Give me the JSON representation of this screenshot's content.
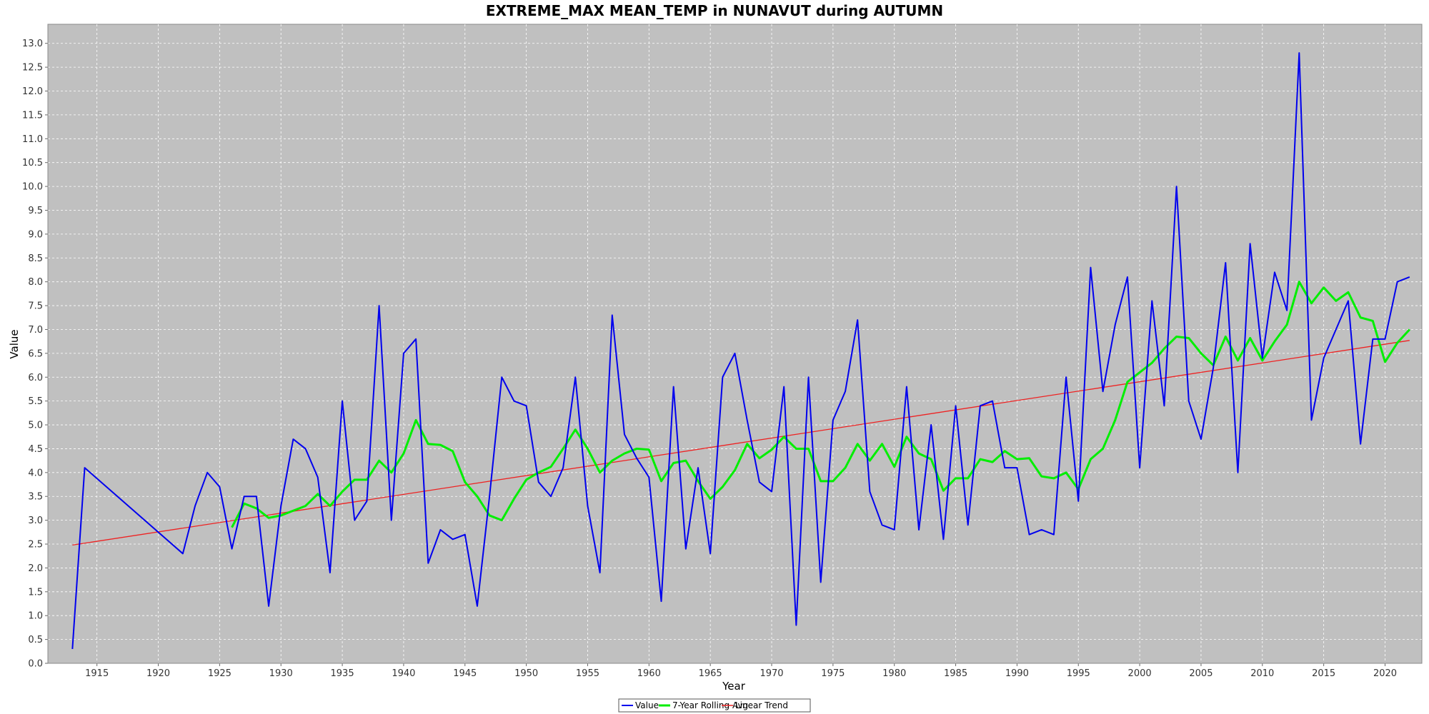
{
  "chart_data": {
    "type": "line",
    "title": "EXTREME_MAX MEAN_TEMP in NUNAVUT during AUTUMN",
    "xlabel": "Year",
    "ylabel": "Value",
    "xlim": [
      1911,
      2023
    ],
    "ylim": [
      0,
      13.4
    ],
    "x_ticks": [
      1915,
      1920,
      1925,
      1930,
      1935,
      1940,
      1945,
      1950,
      1955,
      1960,
      1965,
      1970,
      1975,
      1980,
      1985,
      1990,
      1995,
      2000,
      2005,
      2010,
      2015,
      2020
    ],
    "y_ticks": [
      0.0,
      0.5,
      1.0,
      1.5,
      2.0,
      2.5,
      3.0,
      3.5,
      4.0,
      4.5,
      5.0,
      5.5,
      6.0,
      6.5,
      7.0,
      7.5,
      8.0,
      8.5,
      9.0,
      9.5,
      10.0,
      10.5,
      11.0,
      11.5,
      12.0,
      12.5,
      13.0
    ],
    "grid": true,
    "legend_position": "bottom-center",
    "colors": {
      "plot_bg": "#c0c0c0",
      "value": "#0000ee",
      "rolling": "#00ee00",
      "trend": "#ee2222"
    },
    "series": [
      {
        "name": "Value",
        "x": [
          1913,
          1914,
          1922,
          1923,
          1924,
          1925,
          1926,
          1927,
          1928,
          1929,
          1930,
          1931,
          1932,
          1933,
          1934,
          1935,
          1936,
          1937,
          1938,
          1939,
          1940,
          1941,
          1942,
          1943,
          1944,
          1945,
          1946,
          1947,
          1948,
          1949,
          1950,
          1951,
          1952,
          1953,
          1954,
          1955,
          1956,
          1957,
          1958,
          1959,
          1960,
          1961,
          1962,
          1963,
          1964,
          1965,
          1966,
          1967,
          1968,
          1969,
          1970,
          1971,
          1972,
          1973,
          1974,
          1975,
          1976,
          1977,
          1978,
          1979,
          1980,
          1981,
          1982,
          1983,
          1984,
          1985,
          1986,
          1987,
          1988,
          1989,
          1990,
          1991,
          1992,
          1993,
          1994,
          1995,
          1996,
          1997,
          1998,
          1999,
          2000,
          2001,
          2002,
          2003,
          2004,
          2005,
          2006,
          2007,
          2008,
          2009,
          2010,
          2011,
          2012,
          2013,
          2014,
          2015,
          2017,
          2018,
          2019,
          2020,
          2021,
          2022
        ],
        "y": [
          0.3,
          4.1,
          2.3,
          3.3,
          4.0,
          3.7,
          2.4,
          3.5,
          3.5,
          1.2,
          3.3,
          4.7,
          4.5,
          3.9,
          1.9,
          5.5,
          3.0,
          3.4,
          7.5,
          3.0,
          6.5,
          6.8,
          2.1,
          2.8,
          2.6,
          2.7,
          1.2,
          3.5,
          6.0,
          5.5,
          5.4,
          3.8,
          3.5,
          4.1,
          6.0,
          3.3,
          1.9,
          7.3,
          4.8,
          4.3,
          3.9,
          1.3,
          5.8,
          2.4,
          4.1,
          2.3,
          6.0,
          6.5,
          5.1,
          3.8,
          3.6,
          5.8,
          0.8,
          6.0,
          1.7,
          5.1,
          5.7,
          7.2,
          3.6,
          2.9,
          2.8,
          5.8,
          2.8,
          5.0,
          2.6,
          5.4,
          2.9,
          5.4,
          5.5,
          4.1,
          4.1,
          2.7,
          2.8,
          2.7,
          6.0,
          3.4,
          8.3,
          5.7,
          7.1,
          8.1,
          4.1,
          7.6,
          5.4,
          10.0,
          5.5,
          4.7,
          6.2,
          8.4,
          4.0,
          8.8,
          6.4,
          8.2,
          7.4,
          12.8,
          5.1,
          6.4,
          7.6,
          4.6,
          6.8,
          6.8,
          8.0,
          8.1
        ]
      },
      {
        "name": "7-Year Rolling Avg",
        "x": [
          1926,
          1927,
          1928,
          1929,
          1930,
          1931,
          1932,
          1933,
          1934,
          1935,
          1936,
          1937,
          1938,
          1939,
          1940,
          1941,
          1942,
          1943,
          1944,
          1945,
          1946,
          1947,
          1948,
          1949,
          1950,
          1951,
          1952,
          1953,
          1954,
          1955,
          1956,
          1957,
          1958,
          1959,
          1960,
          1961,
          1962,
          1963,
          1964,
          1965,
          1966,
          1967,
          1968,
          1969,
          1970,
          1971,
          1972,
          1973,
          1974,
          1975,
          1976,
          1977,
          1978,
          1979,
          1980,
          1981,
          1982,
          1983,
          1984,
          1985,
          1986,
          1987,
          1988,
          1989,
          1990,
          1991,
          1992,
          1993,
          1994,
          1995,
          1996,
          1997,
          1998,
          1999,
          2000,
          2001,
          2002,
          2003,
          2004,
          2005,
          2006,
          2007,
          2008,
          2009,
          2010,
          2011,
          2012,
          2013,
          2014,
          2015,
          2016,
          2017,
          2018,
          2019,
          2020,
          2021,
          2022
        ],
        "y": [
          2.85,
          3.35,
          3.25,
          3.05,
          3.1,
          3.2,
          3.3,
          3.55,
          3.3,
          3.6,
          3.85,
          3.85,
          4.25,
          4.0,
          4.4,
          5.1,
          4.6,
          4.58,
          4.45,
          3.8,
          3.5,
          3.1,
          3.0,
          3.45,
          3.85,
          4.0,
          4.12,
          4.5,
          4.9,
          4.5,
          4.0,
          4.25,
          4.4,
          4.5,
          4.48,
          3.82,
          4.2,
          4.25,
          3.82,
          3.45,
          3.7,
          4.05,
          4.6,
          4.3,
          4.48,
          4.75,
          4.5,
          4.5,
          3.82,
          3.82,
          4.1,
          4.6,
          4.25,
          4.6,
          4.12,
          4.75,
          4.4,
          4.28,
          3.62,
          3.88,
          3.88,
          4.28,
          4.22,
          4.45,
          4.28,
          4.3,
          3.92,
          3.88,
          4.0,
          3.65,
          4.28,
          4.5,
          5.1,
          5.9,
          6.1,
          6.3,
          6.6,
          6.85,
          6.82,
          6.5,
          6.25,
          6.85,
          6.35,
          6.82,
          6.35,
          6.75,
          7.1,
          8.0,
          7.55,
          7.88,
          7.6,
          7.78,
          7.25,
          7.18,
          6.32,
          6.72,
          7.0
        ]
      },
      {
        "name": "Linear Trend",
        "x": [
          1913,
          2022
        ],
        "y": [
          2.48,
          6.77
        ]
      }
    ]
  }
}
